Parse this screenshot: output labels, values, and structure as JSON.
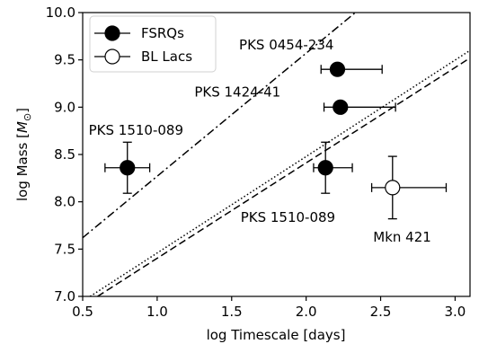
{
  "chart_data": {
    "type": "scatter",
    "title": "",
    "xlabel": "log Timescale [days]",
    "ylabel_prefix": "log Mass [",
    "ylabel_symbol": "M",
    "ylabel_sub": "⊙",
    "ylabel_suffix": "]",
    "xlim": [
      0.5,
      3.1
    ],
    "ylim": [
      7.0,
      10.0
    ],
    "xticks": [
      0.5,
      1.0,
      1.5,
      2.0,
      2.5,
      3.0
    ],
    "xtick_labels": [
      "0.5",
      "1.0",
      "1.5",
      "2.0",
      "2.5",
      "3.0"
    ],
    "yticks": [
      7.0,
      7.5,
      8.0,
      8.5,
      9.0,
      9.5,
      10.0
    ],
    "ytick_labels": [
      "7.0",
      "7.5",
      "8.0",
      "8.5",
      "9.0",
      "9.5",
      "10.0"
    ],
    "grid": false,
    "legend_position": "top-left",
    "series": [
      {
        "name": "FSRQs",
        "marker": "filled-circle",
        "points": [
          {
            "x": 0.8,
            "y": 8.36,
            "xerr": [
              0.15,
              0.15
            ],
            "yerr": [
              0.27,
              0.27
            ]
          },
          {
            "x": 2.13,
            "y": 8.36,
            "xerr": [
              0.08,
              0.18
            ],
            "yerr": [
              0.27,
              0.27
            ]
          },
          {
            "x": 2.21,
            "y": 9.4,
            "xerr": [
              0.11,
              0.3
            ],
            "yerr": [
              0.0,
              0.0
            ]
          },
          {
            "x": 2.23,
            "y": 9.0,
            "xerr": [
              0.11,
              0.37
            ],
            "yerr": [
              0.0,
              0.0
            ]
          }
        ]
      },
      {
        "name": "BL Lacs",
        "marker": "open-circle",
        "points": [
          {
            "x": 2.58,
            "y": 8.15,
            "xerr": [
              0.14,
              0.36
            ],
            "yerr": [
              0.33,
              0.33
            ]
          }
        ]
      }
    ],
    "lines": [
      {
        "style": "dashdot",
        "x": [
          0.5,
          2.33
        ],
        "y": [
          7.62,
          10.0
        ]
      },
      {
        "style": "dotted",
        "x": [
          0.55,
          3.1
        ],
        "y": [
          7.0,
          9.6
        ]
      },
      {
        "style": "dashed",
        "x": [
          0.6,
          3.1
        ],
        "y": [
          7.0,
          9.52
        ]
      }
    ],
    "annotations": [
      {
        "text": "PKS 0454-234",
        "x": 1.55,
        "y": 9.61
      },
      {
        "text": "PKS 1424-41",
        "x": 1.25,
        "y": 9.11
      },
      {
        "text": "PKS 1510-089",
        "x": 0.54,
        "y": 8.71
      },
      {
        "text": "PKS 1510-089",
        "x": 1.56,
        "y": 7.79
      },
      {
        "text": "Mkn 421",
        "x": 2.45,
        "y": 7.58
      }
    ]
  }
}
